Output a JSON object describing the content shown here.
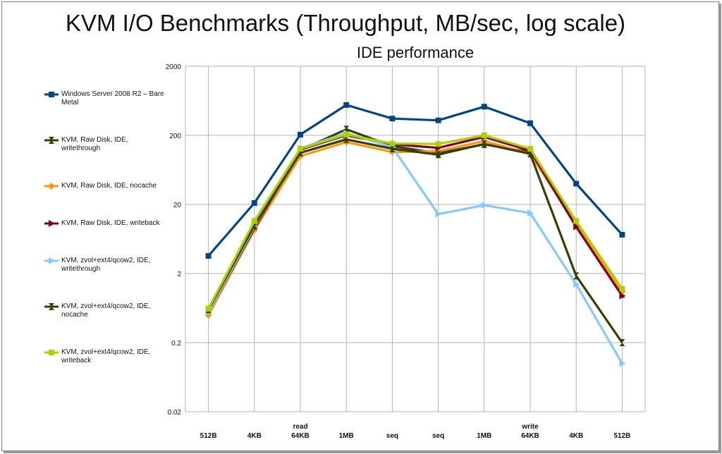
{
  "title": "KVM I/O Benchmarks (Throughput, MB/sec, log scale)",
  "chart_data": {
    "type": "line",
    "subtitle": "IDE performance",
    "y_scale": "log",
    "ylim": [
      0.02,
      2000
    ],
    "y_ticks": [
      "2000",
      "200",
      "20",
      "2",
      "0.2",
      "0.02"
    ],
    "y_tick_values": [
      2000,
      200,
      20,
      2,
      0.2,
      0.02
    ],
    "grid": true,
    "legend_position": "left",
    "categories": [
      [
        "512B"
      ],
      [
        "4KB"
      ],
      [
        "read",
        "64KB"
      ],
      [
        "1MB"
      ],
      [
        "seq"
      ],
      [
        "seq"
      ],
      [
        "1MB"
      ],
      [
        "write",
        "64KB"
      ],
      [
        "4KB"
      ],
      [
        "512B"
      ]
    ],
    "series": [
      {
        "name": "Windows Server 2008 R2 – Bare Metal",
        "color": "#004586",
        "marker": "square",
        "values": [
          3.6,
          21,
          205,
          550,
          350,
          330,
          520,
          300,
          40,
          7.3
        ]
      },
      {
        "name": "KVM, Raw Disk, IDE, writethrough",
        "color": "#314004",
        "marker": "x",
        "values": [
          0.6,
          11,
          122,
          245,
          140,
          110,
          148,
          115,
          11,
          1.0
        ]
      },
      {
        "name": "KVM, Raw Disk, IDE, nocache",
        "color": "#ff950e",
        "marker": "diamond",
        "values": [
          0.5,
          8.5,
          100,
          160,
          115,
          118,
          165,
          108,
          10,
          1.1
        ]
      },
      {
        "name": "KVM, Raw Disk, IDE, writeback",
        "color": "#7e0021",
        "marker": "triangle",
        "values": [
          0.55,
          9,
          125,
          200,
          148,
          132,
          190,
          120,
          9.5,
          0.95
        ]
      },
      {
        "name": "KVM, zvol+ext4/qcow2, IDE, writethrough",
        "color": "#83caff",
        "marker": "triangle",
        "values": [
          0.55,
          9.5,
          130,
          215,
          135,
          14.5,
          19.5,
          15,
          1.4,
          0.1
        ]
      },
      {
        "name": "KVM, zvol+ext4/qcow2, IDE, nocache",
        "color": "#314004",
        "marker": "x",
        "values": [
          0.6,
          10,
          112,
          175,
          128,
          105,
          150,
          108,
          1.85,
          0.2
        ]
      },
      {
        "name": "KVM, zvol+ext4/qcow2, IDE, writeback",
        "color": "#aecf00",
        "marker": "square",
        "values": [
          0.62,
          11.5,
          128,
          205,
          152,
          150,
          200,
          128,
          11.5,
          1.2
        ]
      }
    ]
  }
}
